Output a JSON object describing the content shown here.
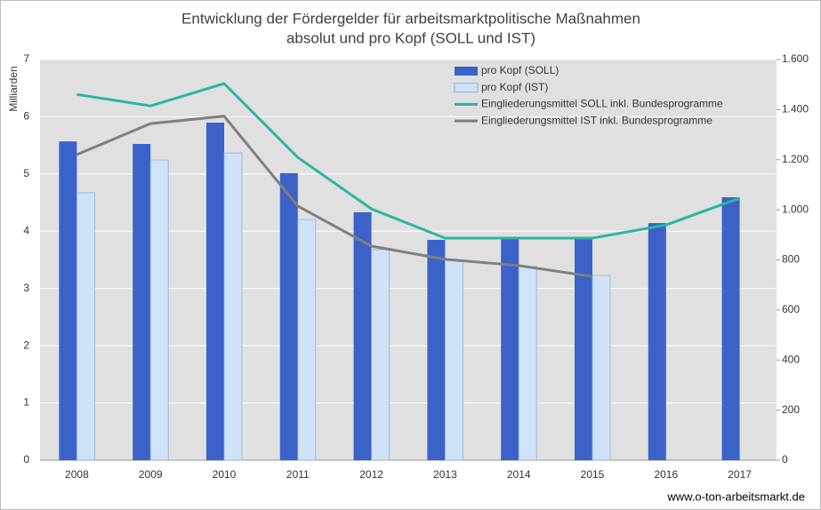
{
  "chart_data": {
    "type": "combo",
    "title": "Entwicklung der Fördergelder für arbeitsmarktpolitische Maßnahmen",
    "subtitle": "absolut und pro Kopf (SOLL und IST)",
    "y_label": "Milliarden",
    "source": "www.o-ton-arbeitsmarkt.de",
    "categories": [
      "2008",
      "2009",
      "2010",
      "2011",
      "2012",
      "2013",
      "2014",
      "2015",
      "2016",
      "2017"
    ],
    "series": [
      {
        "name": "pro Kopf (SOLL)",
        "type": "bar",
        "axis": "y2",
        "color": "#3a62c8",
        "values": [
          1273,
          1263,
          1348,
          1146,
          990,
          880,
          887,
          887,
          947,
          1050
        ]
      },
      {
        "name": "pro Kopf (IST)",
        "type": "bar",
        "axis": "y2",
        "color": "#cfe2f7",
        "values": [
          1068,
          1199,
          1227,
          961,
          841,
          798,
          773,
          738,
          null,
          null
        ]
      },
      {
        "name": "Eingliederungsmittel SOLL inkl. Bundesprogramme",
        "type": "line",
        "color": "#2bb5a0",
        "values": [
          6.39,
          6.19,
          6.58,
          5.29,
          4.39,
          3.88,
          3.88,
          3.88,
          4.11,
          4.58
        ]
      },
      {
        "name": "Eingliederungsmittel IST inkl. Bundesprogramme",
        "type": "line",
        "color": "#7f7f7f",
        "values": [
          5.34,
          5.88,
          6.01,
          4.44,
          3.74,
          3.51,
          3.4,
          3.21,
          null,
          null
        ]
      }
    ],
    "ylim": [
      0,
      7
    ],
    "yticks": [
      0,
      1,
      2,
      3,
      4,
      5,
      6,
      7
    ],
    "y2lim": [
      0,
      1600
    ],
    "y2ticks": [
      0,
      200,
      400,
      600,
      800,
      {
        "value": 1000,
        "label": "1.000"
      },
      {
        "value": 1200,
        "label": "1.200"
      },
      {
        "value": 1400,
        "label": "1.400"
      },
      {
        "value": 1600,
        "label": "1.600"
      }
    ],
    "grid": true,
    "legend": "top"
  }
}
